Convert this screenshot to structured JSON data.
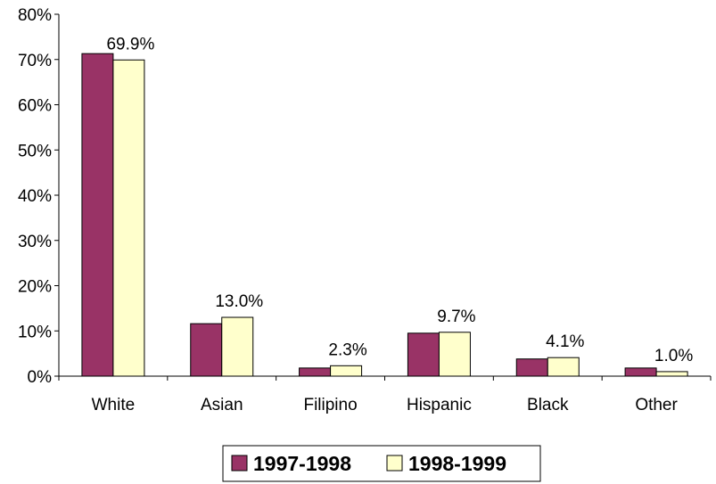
{
  "chart_data": {
    "type": "bar",
    "categories": [
      "White",
      "Asian",
      "Filipino",
      "Hispanic",
      "Black",
      "Other"
    ],
    "series": [
      {
        "name": "1997-1998",
        "values": [
          71.3,
          11.6,
          1.8,
          9.5,
          3.8,
          1.8
        ],
        "color": "#993366"
      },
      {
        "name": "1998-1999",
        "values": [
          69.9,
          13.0,
          2.3,
          9.7,
          4.1,
          1.0
        ],
        "color": "#FFFFCC"
      }
    ],
    "data_labels": [
      "69.9%",
      "13.0%",
      "2.3%",
      "9.7%",
      "4.1%",
      "1.0%"
    ],
    "ylim": [
      0,
      80
    ],
    "ytick_step": 10,
    "ytick_labels": [
      "0%",
      "10%",
      "20%",
      "30%",
      "40%",
      "50%",
      "60%",
      "70%",
      "80%"
    ],
    "title": "",
    "xlabel": "",
    "ylabel": "",
    "grid": false,
    "legend_position": "bottom-center"
  }
}
